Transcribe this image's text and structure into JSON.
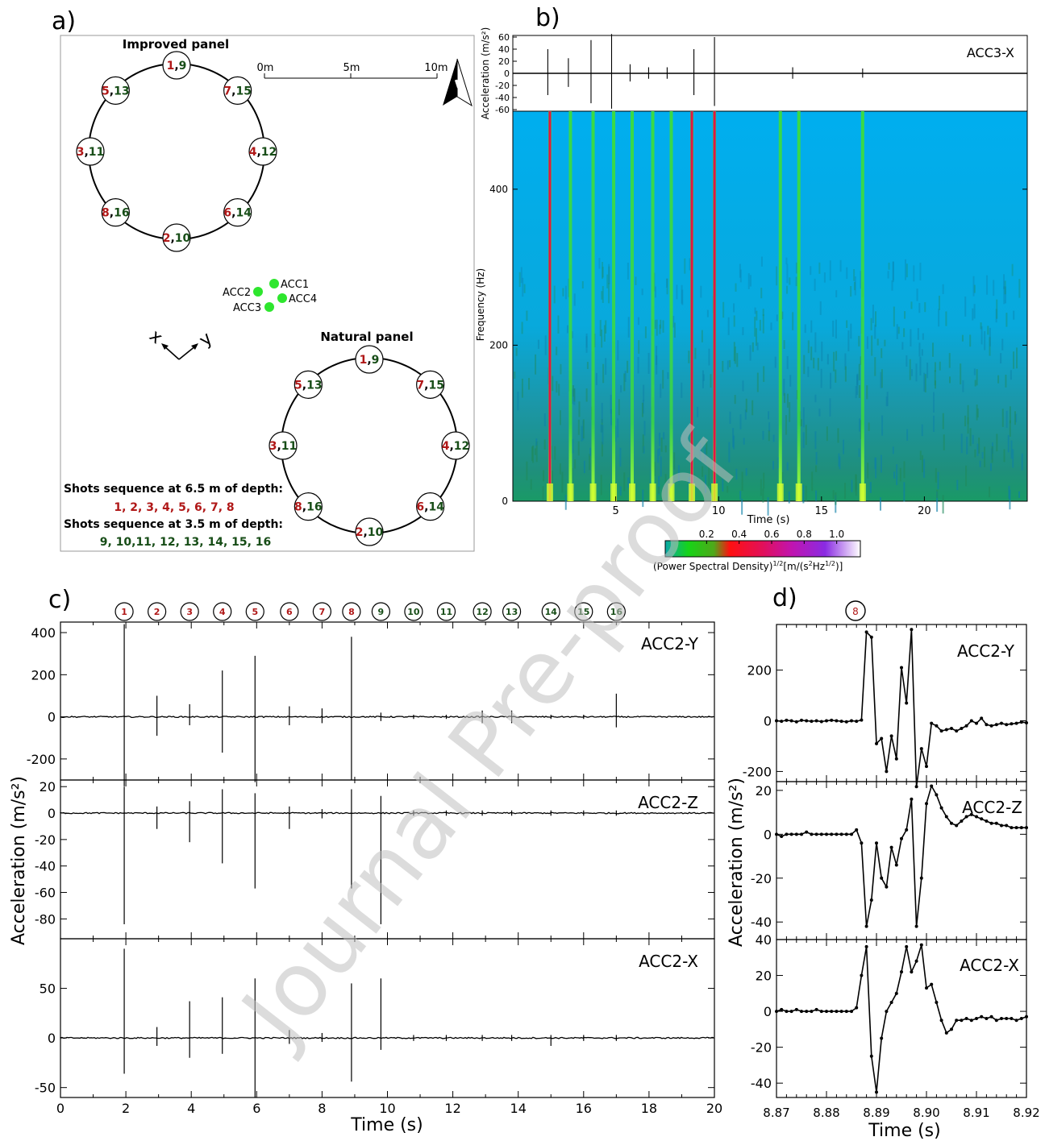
{
  "colors": {
    "red": "#b01818",
    "green": "#174d17",
    "acc_dot": "#2ee62e",
    "spec_bg": "#00aeef",
    "watermark": "#bfbfbf"
  },
  "watermark": "Journal Pre-proof",
  "panel_a": {
    "letter": "a)",
    "improved_title": "Improved panel",
    "natural_title": "Natural panel",
    "improved_holes": [
      {
        "r": "1",
        "g": "9"
      },
      {
        "r": "7",
        "g": "15"
      },
      {
        "r": "4",
        "g": "12"
      },
      {
        "r": "6",
        "g": "14"
      },
      {
        "r": "2",
        "g": "10"
      },
      {
        "r": "8",
        "g": "16"
      },
      {
        "r": "3",
        "g": "11"
      },
      {
        "r": "5",
        "g": "13"
      }
    ],
    "natural_holes": [
      {
        "r": "1",
        "g": "9"
      },
      {
        "r": "7",
        "g": "15"
      },
      {
        "r": "4",
        "g": "12"
      },
      {
        "r": "6",
        "g": "14"
      },
      {
        "r": "2",
        "g": "10"
      },
      {
        "r": "8",
        "g": "16"
      },
      {
        "r": "3",
        "g": "11"
      },
      {
        "r": "5",
        "g": "13"
      }
    ],
    "scale_labels": [
      "0m",
      "5m",
      "10m"
    ],
    "north": "N",
    "acc": [
      "ACC1",
      "ACC2",
      "ACC3",
      "ACC4"
    ],
    "axis_x": "x",
    "axis_y": "y",
    "seq1_title": "Shots sequence at 6.5 m of depth:",
    "seq1": "1, 2, 3, 4, 5, 6, 7, 8",
    "seq2_title": "Shots sequence at 3.5 m of depth:",
    "seq2": "9, 10,11, 12, 13, 14, 15, 16"
  },
  "panel_b": {
    "letter": "b)",
    "trace_label": "ACC3-X",
    "acc_ylabel": "Acceleration (m/s²)",
    "acc_ticks": [
      "60",
      "40",
      "20",
      "0",
      "-20",
      "-40",
      "-60"
    ],
    "freq_ylabel": "Frequency (Hz)",
    "freq_ticks": [
      "400",
      "200",
      "0"
    ],
    "xlabel": "Time (s)",
    "x_ticks": [
      "5",
      "10",
      "15",
      "20"
    ],
    "colorbar_ticks": [
      "0.2",
      "0.4",
      "0.6",
      "0.8",
      "1.0"
    ],
    "colorbar_label": "(Power Spectral Density)",
    "colorbar_sup1": "1/2",
    "colorbar_units": "[m/(s",
    "colorbar_sup2": "2",
    "colorbar_units2": "Hz",
    "colorbar_sup3": "1/2",
    "colorbar_units3": ")]"
  },
  "panel_c": {
    "letter": "c)",
    "ylabel": "Acceleration  (m/s²)",
    "xlabel": "Time  (s)",
    "x_ticks": [
      "0",
      "2",
      "4",
      "6",
      "8",
      "10",
      "12",
      "14",
      "16",
      "18",
      "20"
    ],
    "shots": [
      "1",
      "2",
      "3",
      "4",
      "5",
      "6",
      "7",
      "8",
      "9",
      "10",
      "11",
      "12",
      "13",
      "14",
      "15",
      "16"
    ],
    "traces": [
      {
        "label": "ACC2-Y",
        "ticks": [
          "400",
          "200",
          "0",
          "-200"
        ]
      },
      {
        "label": "ACC2-Z",
        "ticks": [
          "20",
          "0",
          "-20",
          "-40",
          "-60",
          "-80"
        ]
      },
      {
        "label": "ACC2-X",
        "ticks": [
          "50",
          "0",
          "-50"
        ]
      }
    ]
  },
  "panel_d": {
    "letter": "d)",
    "shot": "8",
    "ylabel": "Acceleration  (m/s²)",
    "xlabel": "Time  (s)",
    "x_ticks": [
      "8.87",
      "8.88",
      "8.89",
      "8.90",
      "8.91",
      "8.92"
    ],
    "traces": [
      {
        "label": "ACC2-Y",
        "ticks": [
          "200",
          "0",
          "-200"
        ]
      },
      {
        "label": "ACC2-Z",
        "ticks": [
          "20",
          "0",
          "-20",
          "-40"
        ]
      },
      {
        "label": "ACC2-X",
        "ticks": [
          "40",
          "20",
          "0",
          "-20",
          "-40"
        ]
      }
    ]
  },
  "chart_data": [
    {
      "type": "line",
      "panel": "b-top",
      "series": [
        {
          "name": "ACC3-X",
          "x": [
            1.7,
            2.7,
            3.8,
            4.8,
            5.7,
            6.6,
            7.5,
            8.8,
            9.8,
            13.6,
            17.0
          ],
          "y": [
            40,
            25,
            55,
            65,
            15,
            10,
            10,
            40,
            60,
            10,
            8
          ]
        }
      ],
      "xlabel": "Time (s)",
      "ylabel": "Acceleration (m/s²)",
      "ylim": [
        -60,
        60
      ],
      "xlim": [
        0,
        25
      ]
    },
    {
      "type": "heatmap",
      "panel": "b-spectrogram",
      "event_times": [
        1.8,
        2.8,
        3.9,
        4.9,
        5.8,
        6.8,
        7.7,
        8.7,
        9.8,
        13.0,
        13.9,
        17.0
      ],
      "xlabel": "Time (s)",
      "ylabel": "Frequency (Hz)",
      "ylim": [
        0,
        500
      ],
      "xlim": [
        0,
        25
      ]
    },
    {
      "type": "line",
      "panel": "c",
      "shot_times": [
        1.95,
        2.95,
        3.95,
        4.95,
        5.95,
        7.0,
        8.0,
        8.9,
        9.8,
        10.8,
        11.8,
        12.9,
        13.8,
        15.0,
        16.0,
        17.0
      ],
      "series": [
        {
          "name": "ACC2-Y",
          "peaks_max": [
            440,
            100,
            60,
            220,
            290,
            50,
            40,
            380,
            20,
            10,
            10,
            30,
            30,
            10,
            10,
            110
          ],
          "peaks_min": [
            -330,
            -90,
            -40,
            -170,
            -310,
            -40,
            -30,
            -300,
            -20,
            -10,
            -10,
            -30,
            -30,
            -10,
            -10,
            -50
          ]
        },
        {
          "name": "ACC2-Z",
          "peaks_max": [
            20,
            5,
            9,
            18,
            15,
            5,
            3,
            18,
            13,
            2,
            2,
            2,
            2,
            2,
            2,
            2
          ],
          "peaks_min": [
            -84,
            -12,
            -22,
            -38,
            -57,
            -12,
            -4,
            -57,
            -84,
            -2,
            -2,
            -2,
            -2,
            -2,
            -2,
            -2
          ]
        },
        {
          "name": "ACC2-X",
          "peaks_max": [
            90,
            11,
            37,
            41,
            60,
            8,
            5,
            55,
            60,
            3,
            3,
            3,
            3,
            3,
            3,
            3
          ],
          "peaks_min": [
            -36,
            -8,
            -20,
            -16,
            -60,
            -6,
            -4,
            -44,
            -12,
            -3,
            -3,
            -3,
            -3,
            -8,
            -3,
            -3
          ]
        }
      ],
      "xlabel": "Time  (s)",
      "xlim": [
        0,
        20
      ],
      "ylims": [
        [
          -300,
          450
        ],
        [
          -95,
          25
        ],
        [
          -60,
          100
        ]
      ]
    },
    {
      "type": "line",
      "panel": "d",
      "x": [
        8.87,
        8.871,
        8.872,
        8.873,
        8.874,
        8.875,
        8.876,
        8.877,
        8.878,
        8.879,
        8.88,
        8.881,
        8.882,
        8.883,
        8.884,
        8.885,
        8.886,
        8.887,
        8.888,
        8.889,
        8.89,
        8.891,
        8.892,
        8.893,
        8.894,
        8.895,
        8.896,
        8.897,
        8.898,
        8.899,
        8.9,
        8.901,
        8.902,
        8.903,
        8.904,
        8.905,
        8.906,
        8.907,
        8.908,
        8.909,
        8.91,
        8.911,
        8.912,
        8.913,
        8.914,
        8.915,
        8.916,
        8.917,
        8.918,
        8.919,
        8.92
      ],
      "series": [
        {
          "name": "ACC2-Y",
          "y": [
            0,
            -2,
            2,
            0,
            -4,
            2,
            0,
            -2,
            0,
            -3,
            0,
            2,
            0,
            -2,
            -4,
            0,
            -2,
            3,
            350,
            330,
            -90,
            -70,
            -200,
            -60,
            -150,
            210,
            70,
            360,
            -260,
            -110,
            -180,
            -10,
            -20,
            -40,
            -35,
            -30,
            -40,
            -30,
            -20,
            0,
            -10,
            10,
            -15,
            -20,
            -15,
            -10,
            -15,
            -12,
            -10,
            -5,
            -8
          ]
        },
        {
          "name": "ACC2-Z",
          "y": [
            0,
            -1,
            0,
            0,
            0,
            0,
            1,
            0,
            0,
            0,
            0,
            0,
            0,
            0,
            0,
            0,
            2,
            -4,
            -42,
            -30,
            -4,
            -20,
            -24,
            -6,
            -14,
            -2,
            2,
            16,
            -42,
            -20,
            14,
            22,
            18,
            12,
            8,
            5,
            4,
            6,
            8,
            9,
            8,
            7,
            6,
            5,
            5,
            4,
            4,
            3,
            3,
            3,
            3
          ]
        },
        {
          "name": "ACC2-X",
          "y": [
            0,
            1,
            0,
            0,
            1,
            0,
            0,
            0,
            1,
            0,
            0,
            0,
            0,
            0,
            0,
            0,
            2,
            20,
            36,
            -25,
            -45,
            -15,
            0,
            5,
            10,
            22,
            36,
            22,
            28,
            37,
            13,
            15,
            5,
            -5,
            -12,
            -10,
            -5,
            -5,
            -4,
            -5,
            -4,
            -3,
            -4,
            -3,
            -5,
            -4,
            -4,
            -4,
            -5,
            -4,
            -3
          ]
        }
      ],
      "xlabel": "Time  (s)",
      "xlim": [
        8.87,
        8.92
      ],
      "ylims": [
        [
          -240,
          380
        ],
        [
          -48,
          24
        ],
        [
          -48,
          40
        ]
      ]
    }
  ]
}
